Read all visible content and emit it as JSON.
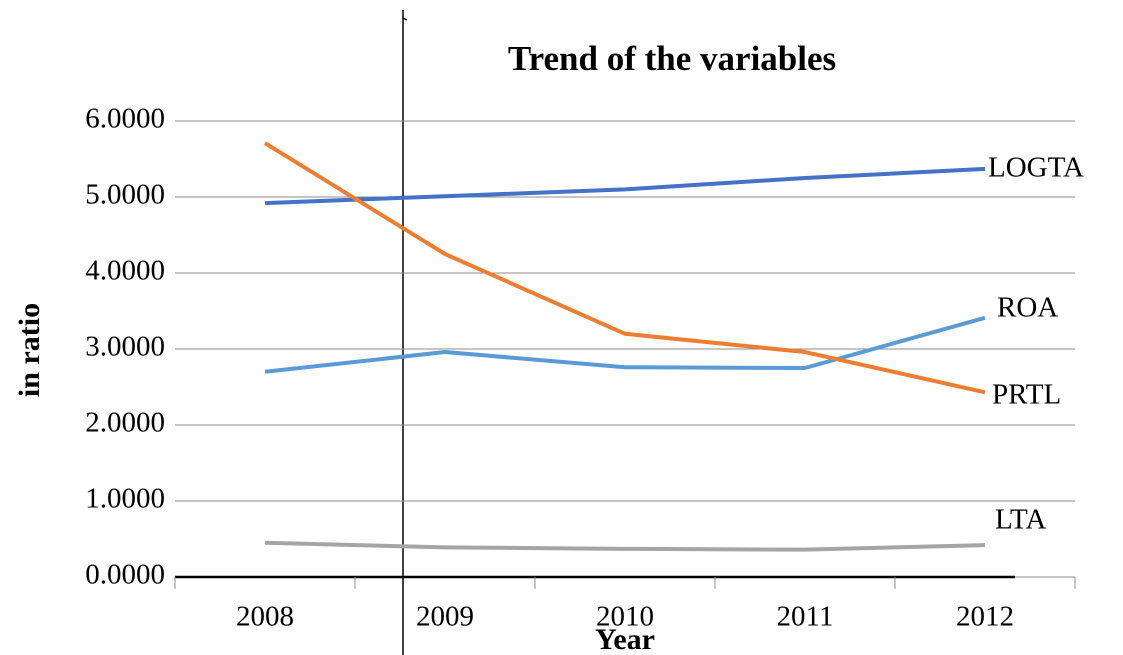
{
  "chart_data": {
    "type": "line",
    "title": "Trend of the variables",
    "x_label": "Year",
    "y_label": "in ratio",
    "categories": [
      "2008",
      "2009",
      "2010",
      "2011",
      "2012"
    ],
    "series": [
      {
        "name": "LOGTA",
        "color": "#4472c4",
        "values": [
          4.92,
          5.01,
          5.1,
          5.25,
          5.37
        ]
      },
      {
        "name": "ROA",
        "color": "#5b9bd5",
        "values": [
          2.7,
          2.96,
          2.76,
          2.75,
          3.41
        ]
      },
      {
        "name": "PRTL",
        "color": "#ed7d31",
        "values": [
          5.71,
          4.25,
          3.2,
          2.96,
          2.43
        ]
      },
      {
        "name": "LTA",
        "color": "#a5a5a5",
        "values": [
          0.45,
          0.39,
          0.37,
          0.36,
          0.42
        ]
      }
    ],
    "ylim": [
      0,
      6
    ],
    "yticks": [
      {
        "value": 0,
        "label": "0.0000"
      },
      {
        "value": 1,
        "label": "1.0000"
      },
      {
        "value": 2,
        "label": "2.0000"
      },
      {
        "value": 3,
        "label": "3.0000"
      },
      {
        "value": 4,
        "label": "4.0000"
      },
      {
        "value": 5,
        "label": "5.0000"
      },
      {
        "value": 6,
        "label": "6.0000"
      }
    ],
    "grid": true
  }
}
